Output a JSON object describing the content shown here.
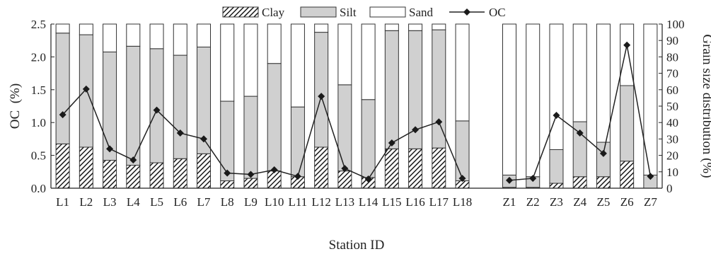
{
  "chart_data": {
    "type": "bar",
    "subtype": "stacked-bar-with-line",
    "categories": [
      "L1",
      "L2",
      "L3",
      "L4",
      "L5",
      "L6",
      "L7",
      "L8",
      "L9",
      "L10",
      "L11",
      "L12",
      "L13",
      "L14",
      "L15",
      "L16",
      "L17",
      "L18",
      "",
      "Z1",
      "Z2",
      "Z3",
      "Z4",
      "Z5",
      "Z6",
      "Z7"
    ],
    "series": [
      {
        "name": "Clay",
        "axis": "right",
        "pattern": "diagonal-hatch",
        "color": "#222222",
        "values": [
          27,
          25,
          17,
          14,
          15.5,
          18,
          21,
          4.5,
          6,
          10.5,
          7,
          25,
          10.5,
          6.5,
          24,
          24,
          24.5,
          4.5,
          null,
          0.5,
          0.5,
          3,
          7,
          7,
          16.5,
          0
        ]
      },
      {
        "name": "Silt",
        "axis": "right",
        "color": "#d0d0d0",
        "values": [
          67.5,
          68.5,
          66,
          72.5,
          69.5,
          63,
          65,
          48.5,
          50,
          65.5,
          42.5,
          70,
          52.5,
          47.5,
          72,
          72,
          72,
          36.5,
          null,
          7.5,
          6.5,
          20.5,
          33.5,
          21,
          46,
          8
        ]
      },
      {
        "name": "Sand",
        "axis": "right",
        "color": "#ffffff",
        "values": [
          5.5,
          6.5,
          17,
          13.5,
          15,
          19,
          14,
          47,
          44,
          24,
          50.5,
          5,
          37,
          46,
          4,
          4,
          3.5,
          59,
          null,
          92,
          93,
          76.5,
          59.5,
          72,
          37.5,
          92
        ]
      },
      {
        "name": "OC",
        "axis": "left",
        "type": "line",
        "marker": "diamond",
        "color": "#222222",
        "values": [
          1.12,
          1.51,
          0.6,
          0.43,
          1.19,
          0.84,
          0.75,
          0.23,
          0.21,
          0.28,
          0.18,
          1.4,
          0.3,
          0.14,
          0.69,
          0.89,
          1.01,
          0.15,
          null,
          0.12,
          0.15,
          1.11,
          0.84,
          0.53,
          2.18,
          0.18
        ]
      }
    ],
    "xlabel": "Station ID",
    "ylabel": "OC  (%)",
    "ylabel_right": "Grain size distribution (%)",
    "ylim": [
      0,
      2.5
    ],
    "ylim_right": [
      0,
      100
    ],
    "yticks": [
      "0.0",
      "0.5",
      "1.0",
      "1.5",
      "2.0",
      "2.5"
    ],
    "yticks_right": [
      "0",
      "10",
      "20",
      "30",
      "40",
      "50",
      "60",
      "70",
      "80",
      "90",
      "100"
    ],
    "legend_position": "top",
    "grid": false
  }
}
